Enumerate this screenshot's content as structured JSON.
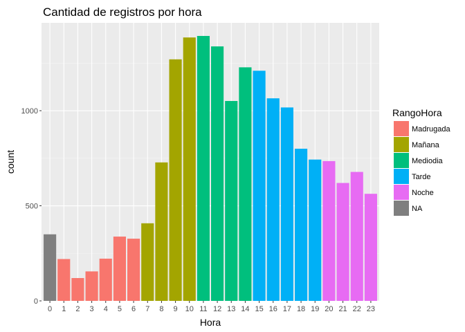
{
  "chart_data": {
    "type": "bar",
    "title": "Cantidad de registros por hora",
    "xlabel": "Hora",
    "ylabel": "count",
    "categories": [
      "0",
      "1",
      "2",
      "3",
      "4",
      "5",
      "6",
      "7",
      "8",
      "9",
      "10",
      "11",
      "12",
      "13",
      "14",
      "15",
      "16",
      "17",
      "18",
      "19",
      "20",
      "21",
      "22",
      "23"
    ],
    "values": [
      350,
      220,
      120,
      155,
      222,
      338,
      327,
      408,
      728,
      1270,
      1385,
      1393,
      1338,
      1051,
      1228,
      1210,
      1065,
      1017,
      800,
      743,
      735,
      620,
      678,
      563
    ],
    "groups": [
      "NA",
      "Madrugada",
      "Madrugada",
      "Madrugada",
      "Madrugada",
      "Madrugada",
      "Madrugada",
      "Mañana",
      "Mañana",
      "Mañana",
      "Mañana",
      "Mediodia",
      "Mediodia",
      "Mediodia",
      "Mediodia",
      "Tarde",
      "Tarde",
      "Tarde",
      "Tarde",
      "Tarde",
      "Noche",
      "Noche",
      "Noche",
      "Noche"
    ],
    "ylim": [
      0,
      1462
    ],
    "yticks": [
      0,
      500,
      1000
    ],
    "ytick_labels": [
      "0",
      "500",
      "1000"
    ],
    "grid": true,
    "panel_background": "#ebebeb",
    "legend": {
      "title": "RangoHora",
      "position": "right",
      "items": [
        {
          "label": "Madrugada",
          "color": "#F8766D"
        },
        {
          "label": "Mañana",
          "color": "#A3A500"
        },
        {
          "label": "Mediodia",
          "color": "#00BF7D"
        },
        {
          "label": "Tarde",
          "color": "#00B0F6"
        },
        {
          "label": "Noche",
          "color": "#E76BF3"
        },
        {
          "label": "NA",
          "color": "#7F7F7F"
        }
      ]
    }
  }
}
